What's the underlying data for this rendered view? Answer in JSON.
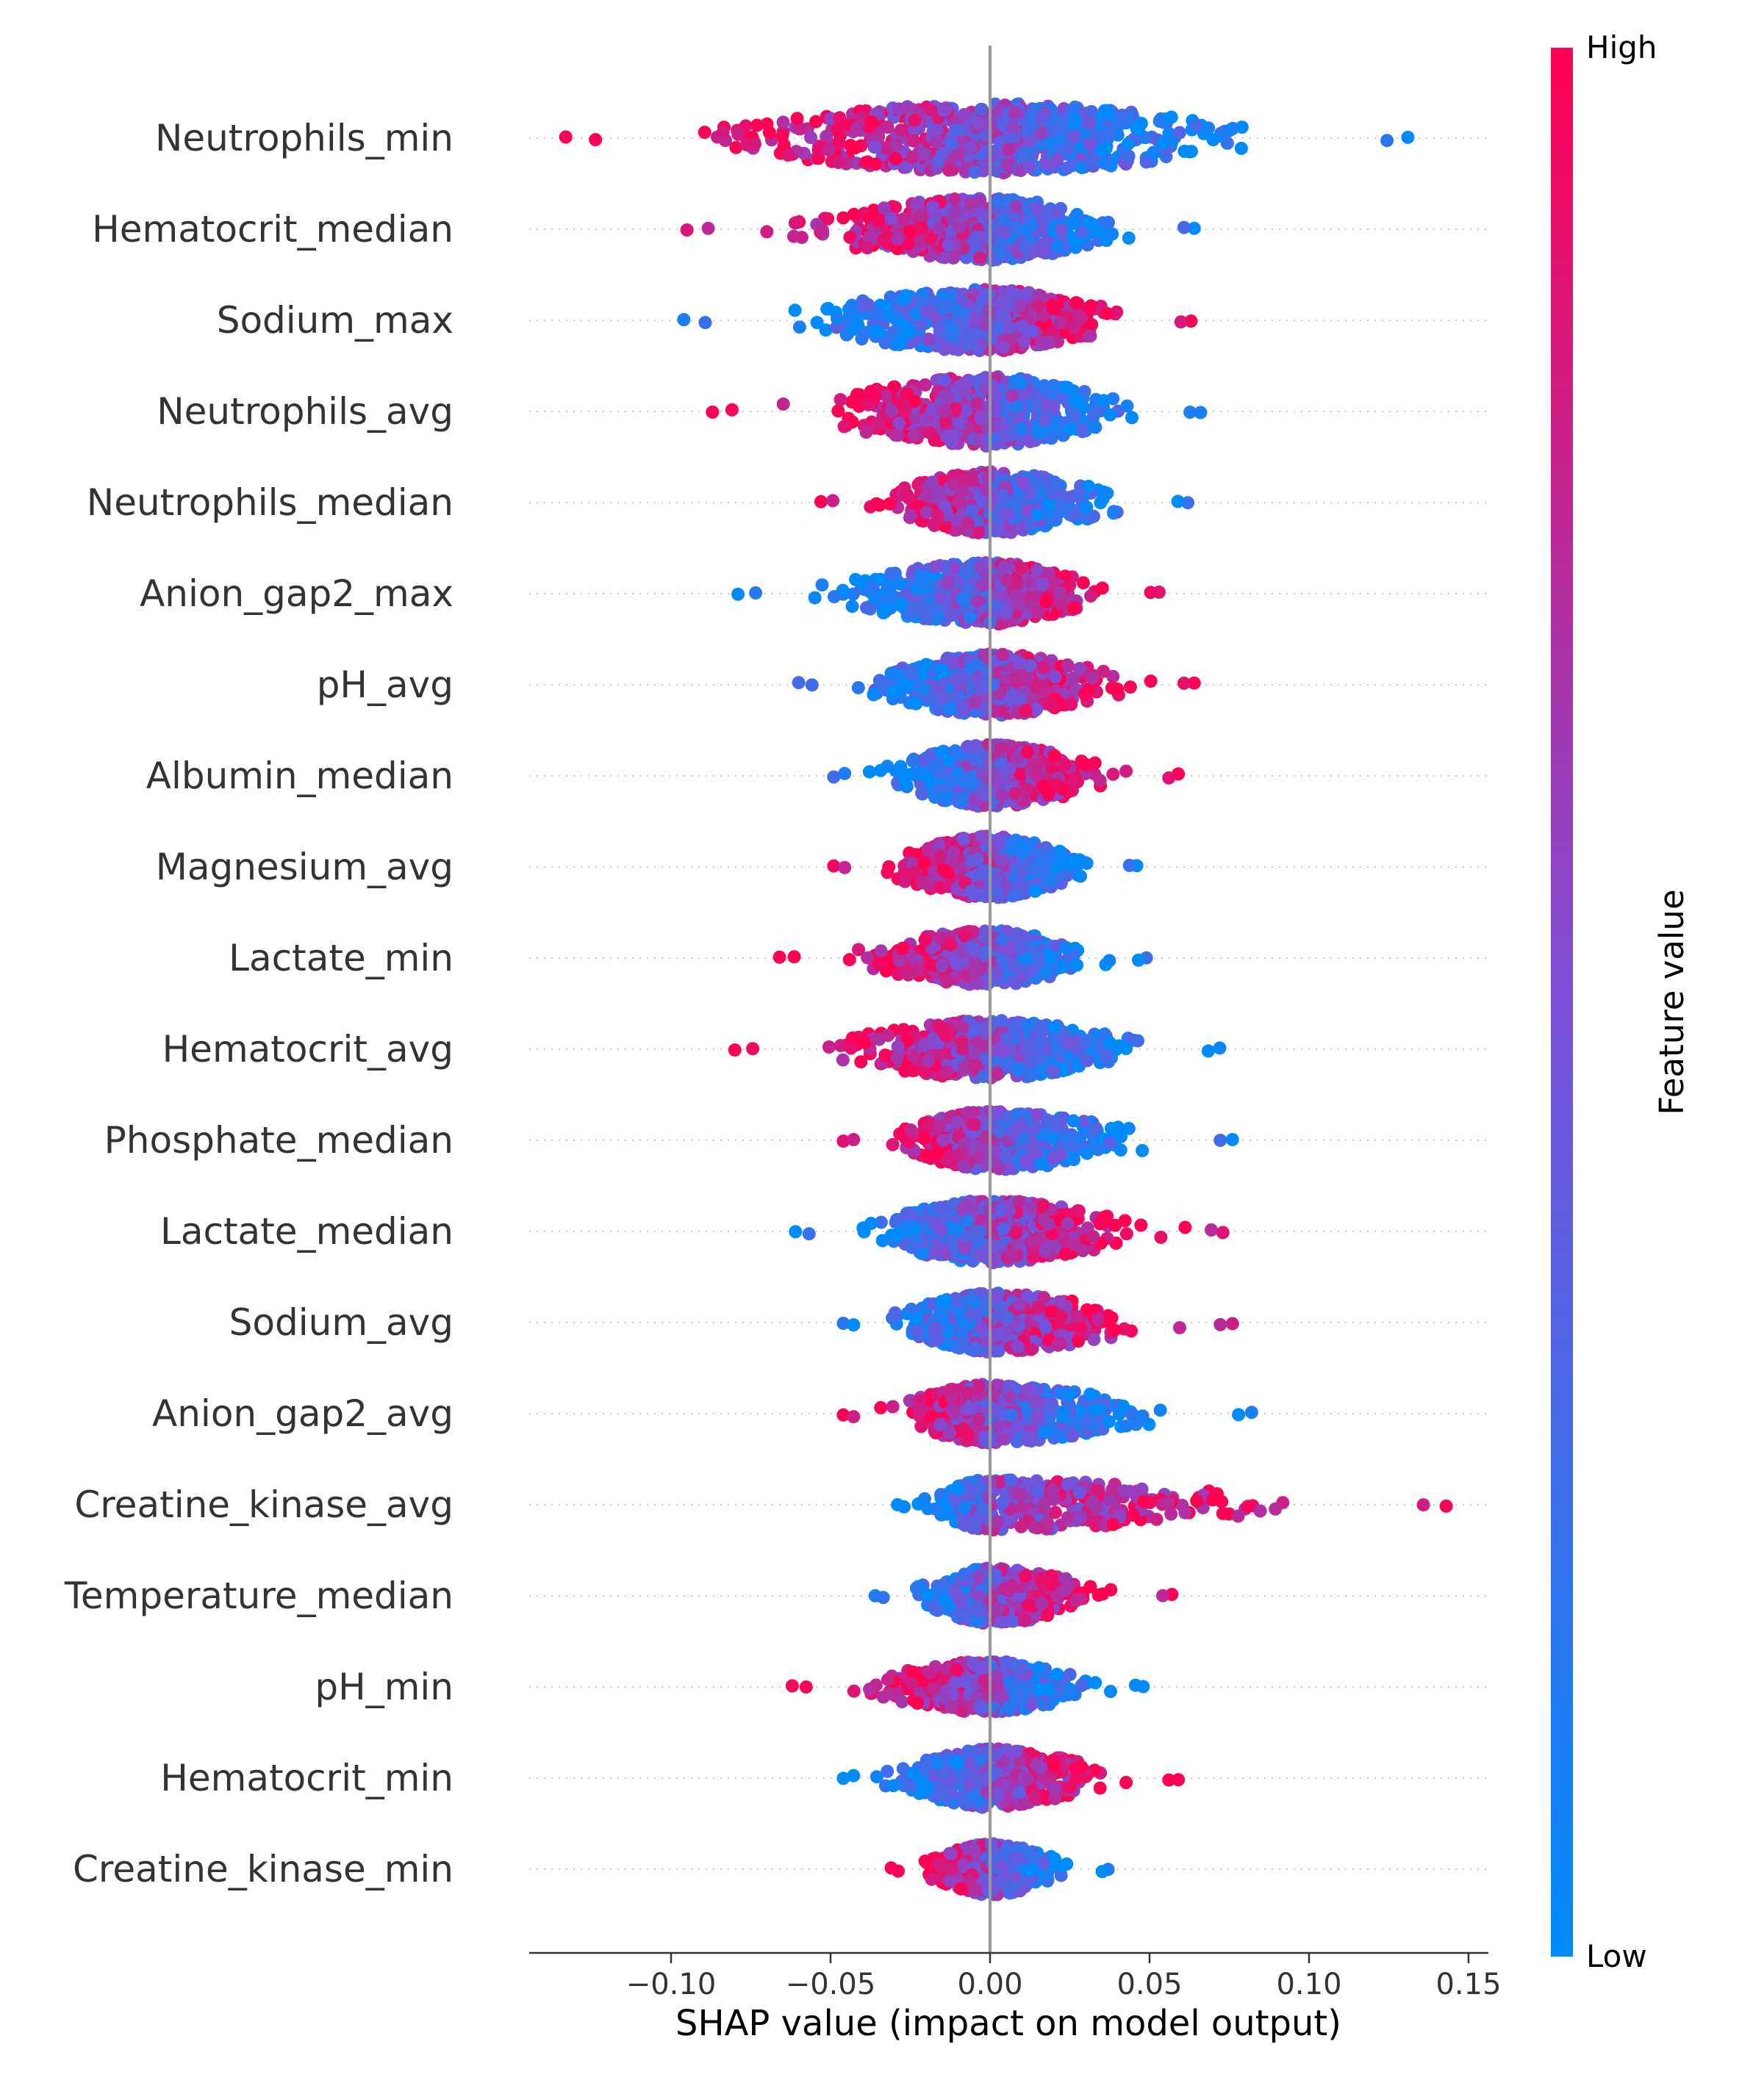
{
  "chart_data": {
    "type": "scatter",
    "subtype": "shap-beeswarm",
    "title": "",
    "xlabel": "SHAP value (impact on model output)",
    "ylabel": "",
    "xlim": [
      -0.145,
      0.155
    ],
    "xticks": [
      -0.1,
      -0.05,
      0.0,
      0.05,
      0.1,
      0.15
    ],
    "xtick_labels": [
      "−0.10",
      "−0.05",
      "0.00",
      "0.05",
      "0.10",
      "0.15"
    ],
    "grid": false,
    "colorbar": {
      "title": "Feature value",
      "high_label": "High",
      "low_label": "Low",
      "high_color": "#ff0052",
      "mid_color": "#7c4fd8",
      "low_color": "#008bfb"
    },
    "features": [
      {
        "name": "Neutrophils_min",
        "min": -0.133,
        "max": 0.131,
        "high_side": "left",
        "spread": 0.95,
        "density": 1.0
      },
      {
        "name": "Hematocrit_median",
        "min": -0.095,
        "max": 0.064,
        "high_side": "left",
        "spread": 0.85,
        "density": 0.75
      },
      {
        "name": "Sodium_max",
        "min": -0.096,
        "max": 0.063,
        "high_side": "right",
        "spread": 0.85,
        "density": 0.75
      },
      {
        "name": "Neutrophils_avg",
        "min": -0.087,
        "max": 0.066,
        "high_side": "left",
        "spread": 0.95,
        "density": 0.8
      },
      {
        "name": "Neutrophils_median",
        "min": -0.053,
        "max": 0.062,
        "high_side": "left",
        "spread": 0.85,
        "density": 0.7
      },
      {
        "name": "Anion_gap2_max",
        "min": -0.079,
        "max": 0.053,
        "high_side": "right",
        "spread": 0.85,
        "density": 0.7
      },
      {
        "name": "pH_avg",
        "min": -0.06,
        "max": 0.064,
        "high_side": "right",
        "spread": 0.85,
        "density": 0.7
      },
      {
        "name": "Albumin_median",
        "min": -0.049,
        "max": 0.059,
        "high_side": "right",
        "spread": 0.85,
        "density": 0.7
      },
      {
        "name": "Magnesium_avg",
        "min": -0.049,
        "max": 0.046,
        "high_side": "left",
        "spread": 0.85,
        "density": 0.65
      },
      {
        "name": "Lactate_min",
        "min": -0.066,
        "max": 0.049,
        "high_side": "left",
        "spread": 0.75,
        "density": 0.65
      },
      {
        "name": "Hematocrit_avg",
        "min": -0.08,
        "max": 0.072,
        "high_side": "left",
        "spread": 0.8,
        "density": 0.65
      },
      {
        "name": "Phosphate_median",
        "min": -0.046,
        "max": 0.076,
        "high_side": "left",
        "spread": 0.8,
        "density": 0.65
      },
      {
        "name": "Lactate_median",
        "min": -0.061,
        "max": 0.073,
        "high_side": "right",
        "spread": 0.85,
        "density": 0.65
      },
      {
        "name": "Sodium_avg",
        "min": -0.046,
        "max": 0.076,
        "high_side": "right",
        "spread": 0.8,
        "density": 0.65
      },
      {
        "name": "Anion_gap2_avg",
        "min": -0.046,
        "max": 0.082,
        "high_side": "left",
        "spread": 0.8,
        "density": 0.6
      },
      {
        "name": "Creatine_kinase_avg",
        "min": -0.029,
        "max": 0.143,
        "high_side": "right",
        "spread": 0.7,
        "density": 0.6
      },
      {
        "name": "Temperature_median",
        "min": -0.036,
        "max": 0.057,
        "high_side": "right",
        "spread": 0.75,
        "density": 0.55
      },
      {
        "name": "pH_min",
        "min": -0.062,
        "max": 0.048,
        "high_side": "left",
        "spread": 0.7,
        "density": 0.55
      },
      {
        "name": "Hematocrit_min",
        "min": -0.046,
        "max": 0.059,
        "high_side": "right",
        "spread": 0.8,
        "density": 0.55
      },
      {
        "name": "Creatine_kinase_min",
        "min": -0.031,
        "max": 0.037,
        "high_side": "left",
        "spread": 0.7,
        "density": 0.5
      }
    ]
  }
}
